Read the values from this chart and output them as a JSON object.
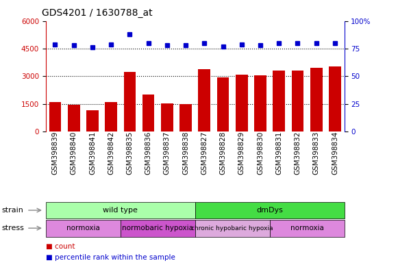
{
  "title": "GDS4201 / 1630788_at",
  "samples": [
    "GSM398839",
    "GSM398840",
    "GSM398841",
    "GSM398842",
    "GSM398835",
    "GSM398836",
    "GSM398837",
    "GSM398838",
    "GSM398827",
    "GSM398828",
    "GSM398829",
    "GSM398830",
    "GSM398831",
    "GSM398832",
    "GSM398833",
    "GSM398834"
  ],
  "counts": [
    1600,
    1450,
    1150,
    1600,
    3250,
    2000,
    1520,
    1500,
    3400,
    2950,
    3100,
    3050,
    3300,
    3300,
    3450,
    3550
  ],
  "percentile_ranks": [
    79,
    78,
    76,
    79,
    88,
    80,
    78,
    78,
    80,
    77,
    79,
    78,
    80,
    80,
    80,
    80
  ],
  "ylim_left": [
    0,
    6000
  ],
  "ylim_right": [
    0,
    100
  ],
  "yticks_left": [
    0,
    1500,
    3000,
    4500,
    6000
  ],
  "yticks_right": [
    0,
    25,
    50,
    75,
    100
  ],
  "bar_color": "#cc0000",
  "dot_color": "#0000cc",
  "strain_groups": [
    {
      "label": "wild type",
      "start": 0,
      "end": 8,
      "color": "#aaffaa"
    },
    {
      "label": "dmDys",
      "start": 8,
      "end": 16,
      "color": "#44dd44"
    }
  ],
  "stress_groups": [
    {
      "label": "normoxia",
      "start": 0,
      "end": 4,
      "color": "#dd88dd"
    },
    {
      "label": "normobaric hypoxia",
      "start": 4,
      "end": 8,
      "color": "#cc55cc"
    },
    {
      "label": "chronic hypobaric hypoxia",
      "start": 8,
      "end": 12,
      "color": "#ddaadd"
    },
    {
      "label": "normoxia",
      "start": 12,
      "end": 16,
      "color": "#dd88dd"
    }
  ],
  "axis_left_color": "#cc0000",
  "axis_right_color": "#0000cc",
  "background_color": "#ffffff",
  "title_fontsize": 10,
  "tick_fontsize": 7.5,
  "bar_width": 0.65
}
